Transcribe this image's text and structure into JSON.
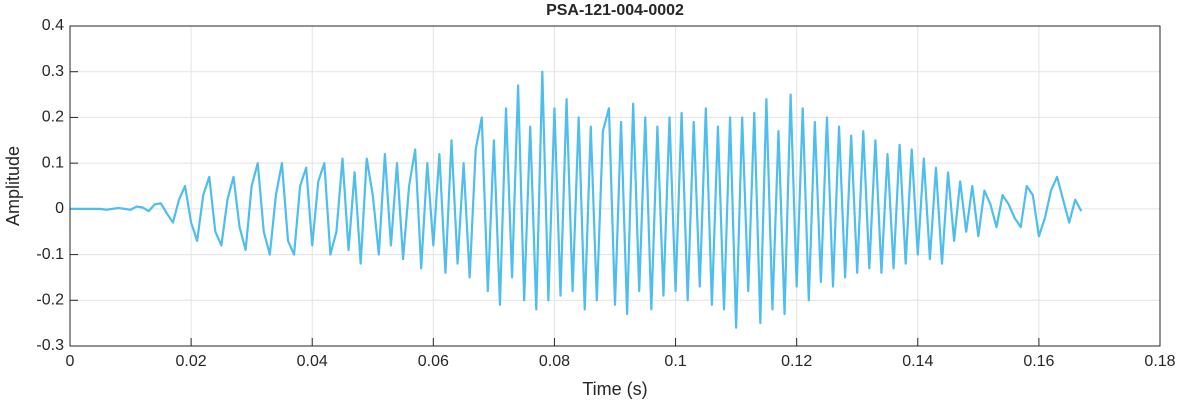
{
  "chart_data": {
    "type": "line",
    "title": "PSA-121-004-0002",
    "xlabel": "Time (s)",
    "ylabel": "Amplitude",
    "x": [
      0,
      0.001,
      0.002,
      0.003,
      0.004,
      0.005,
      0.006,
      0.007,
      0.008,
      0.009,
      0.01,
      0.011,
      0.012,
      0.013,
      0.014,
      0.015,
      0.016,
      0.017,
      0.018,
      0.019,
      0.02,
      0.021,
      0.022,
      0.023,
      0.024,
      0.025,
      0.026,
      0.027,
      0.028,
      0.029,
      0.03,
      0.031,
      0.032,
      0.033,
      0.034,
      0.035,
      0.036,
      0.037,
      0.038,
      0.039,
      0.04,
      0.041,
      0.042,
      0.043,
      0.044,
      0.045,
      0.046,
      0.047,
      0.048,
      0.049,
      0.05,
      0.051,
      0.052,
      0.053,
      0.054,
      0.055,
      0.056,
      0.057,
      0.058,
      0.059,
      0.06,
      0.061,
      0.062,
      0.063,
      0.064,
      0.065,
      0.066,
      0.067,
      0.068,
      0.069,
      0.07,
      0.071,
      0.072,
      0.073,
      0.074,
      0.075,
      0.076,
      0.077,
      0.078,
      0.079,
      0.08,
      0.081,
      0.082,
      0.083,
      0.084,
      0.085,
      0.086,
      0.087,
      0.088,
      0.089,
      0.09,
      0.091,
      0.092,
      0.093,
      0.094,
      0.095,
      0.096,
      0.097,
      0.098,
      0.099,
      0.1,
      0.101,
      0.102,
      0.103,
      0.104,
      0.105,
      0.106,
      0.107,
      0.108,
      0.109,
      0.11,
      0.111,
      0.112,
      0.113,
      0.114,
      0.115,
      0.116,
      0.117,
      0.118,
      0.119,
      0.12,
      0.121,
      0.122,
      0.123,
      0.124,
      0.125,
      0.126,
      0.127,
      0.128,
      0.129,
      0.13,
      0.131,
      0.132,
      0.133,
      0.134,
      0.135,
      0.136,
      0.137,
      0.138,
      0.139,
      0.14,
      0.141,
      0.142,
      0.143,
      0.144,
      0.145,
      0.146,
      0.147,
      0.148,
      0.149,
      0.15,
      0.151,
      0.152,
      0.153,
      0.154,
      0.155,
      0.156,
      0.157,
      0.158,
      0.159,
      0.16,
      0.161,
      0.162,
      0.163,
      0.164,
      0.165,
      0.166,
      0.167
    ],
    "series": [
      {
        "name": "Amplitude",
        "color": "#4dbeee",
        "values": [
          0,
          0,
          0,
          0,
          0,
          0,
          -0.002,
          0,
          0.002,
          0,
          -0.002,
          0.005,
          0.003,
          -0.005,
          0.01,
          0.012,
          -0.01,
          -0.03,
          0.02,
          0.05,
          -0.03,
          -0.07,
          0.03,
          0.07,
          -0.05,
          -0.08,
          0.02,
          0.07,
          -0.04,
          -0.09,
          0.05,
          0.1,
          -0.05,
          -0.1,
          0.03,
          0.1,
          -0.07,
          -0.1,
          0.05,
          0.09,
          -0.08,
          0.06,
          0.1,
          -0.1,
          -0.05,
          0.11,
          -0.09,
          0.08,
          -0.12,
          0.11,
          0.03,
          -0.1,
          0.12,
          -0.08,
          0.1,
          -0.11,
          0.05,
          0.13,
          -0.13,
          0.1,
          -0.08,
          0.12,
          -0.14,
          0.15,
          -0.12,
          0.1,
          -0.15,
          0.13,
          0.2,
          -0.18,
          0.15,
          -0.21,
          0.22,
          -0.15,
          0.27,
          -0.2,
          0.18,
          -0.22,
          0.3,
          -0.2,
          0.22,
          -0.19,
          0.24,
          -0.18,
          0.2,
          -0.22,
          0.18,
          -0.2,
          0.17,
          0.22,
          -0.21,
          0.19,
          -0.23,
          0.23,
          -0.18,
          0.2,
          -0.22,
          0.18,
          -0.19,
          0.2,
          -0.18,
          0.21,
          -0.2,
          0.19,
          -0.17,
          0.22,
          -0.21,
          0.18,
          -0.22,
          0.2,
          -0.26,
          0.2,
          -0.18,
          0.21,
          -0.25,
          0.24,
          -0.22,
          0.17,
          -0.23,
          0.25,
          -0.17,
          0.22,
          -0.2,
          0.19,
          -0.16,
          0.2,
          -0.17,
          0.18,
          -0.15,
          0.16,
          -0.14,
          0.17,
          -0.13,
          0.15,
          -0.14,
          0.12,
          -0.13,
          0.14,
          -0.12,
          0.13,
          -0.1,
          0.11,
          -0.11,
          0.09,
          -0.12,
          0.08,
          -0.07,
          0.06,
          -0.05,
          0.05,
          -0.06,
          0.04,
          0.01,
          -0.04,
          0.03,
          0.01,
          -0.02,
          -0.04,
          0.05,
          0.03,
          -0.06,
          -0.02,
          0.04,
          0.07,
          0.02,
          -0.03,
          0.02,
          -0.005
        ]
      }
    ],
    "xlim": [
      0,
      0.18
    ],
    "xticks": [
      0,
      0.02,
      0.04,
      0.06,
      0.08,
      0.1,
      0.12,
      0.14,
      0.16,
      0.18
    ],
    "ylim": [
      -0.3,
      0.4
    ],
    "yticks": [
      -0.3,
      -0.2,
      -0.1,
      0,
      0.1,
      0.2,
      0.3,
      0.4
    ],
    "grid": true
  }
}
